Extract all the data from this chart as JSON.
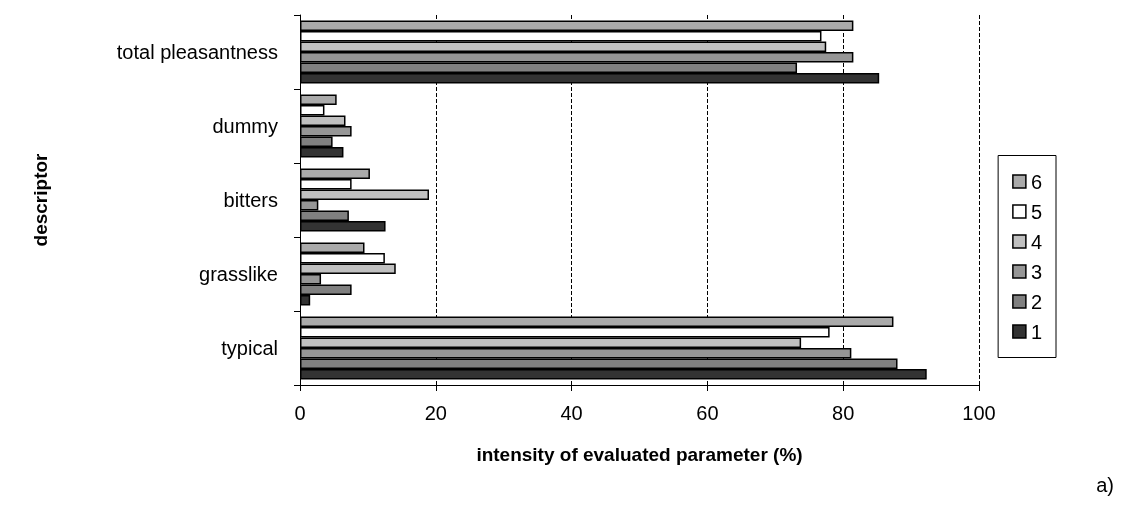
{
  "chart_data": {
    "type": "bar",
    "orientation": "horizontal",
    "xlabel": "intensity of evaluated parameter (%)",
    "ylabel": "descriptor",
    "categories": [
      "total pleasantness",
      "dummy",
      "bitters",
      "grasslike",
      "typical"
    ],
    "series": [
      {
        "name": "6",
        "color": "#aaaaaa",
        "values": [
          81.5,
          5.4,
          10.3,
          9.5,
          87.4
        ]
      },
      {
        "name": "5",
        "color": "#ffffff",
        "values": [
          76.8,
          3.6,
          7.6,
          12.5,
          78
        ]
      },
      {
        "name": "4",
        "color": "#c0c0c0",
        "values": [
          77.5,
          6.7,
          19,
          14.1,
          73.8
        ]
      },
      {
        "name": "3",
        "color": "#969696",
        "values": [
          81.5,
          7.6,
          2.7,
          3.1,
          81.2
        ]
      },
      {
        "name": "2",
        "color": "#808080",
        "values": [
          73.2,
          4.8,
          7.2,
          7.6,
          88
        ]
      },
      {
        "name": "1",
        "color": "#333333",
        "values": [
          85.3,
          6.4,
          12.6,
          1.5,
          92.3
        ]
      }
    ],
    "xlim": [
      0,
      100
    ],
    "xticks": [
      0,
      20,
      40,
      60,
      80,
      100
    ],
    "grid": "x",
    "legend": "right",
    "annotations": [
      "a)"
    ]
  }
}
